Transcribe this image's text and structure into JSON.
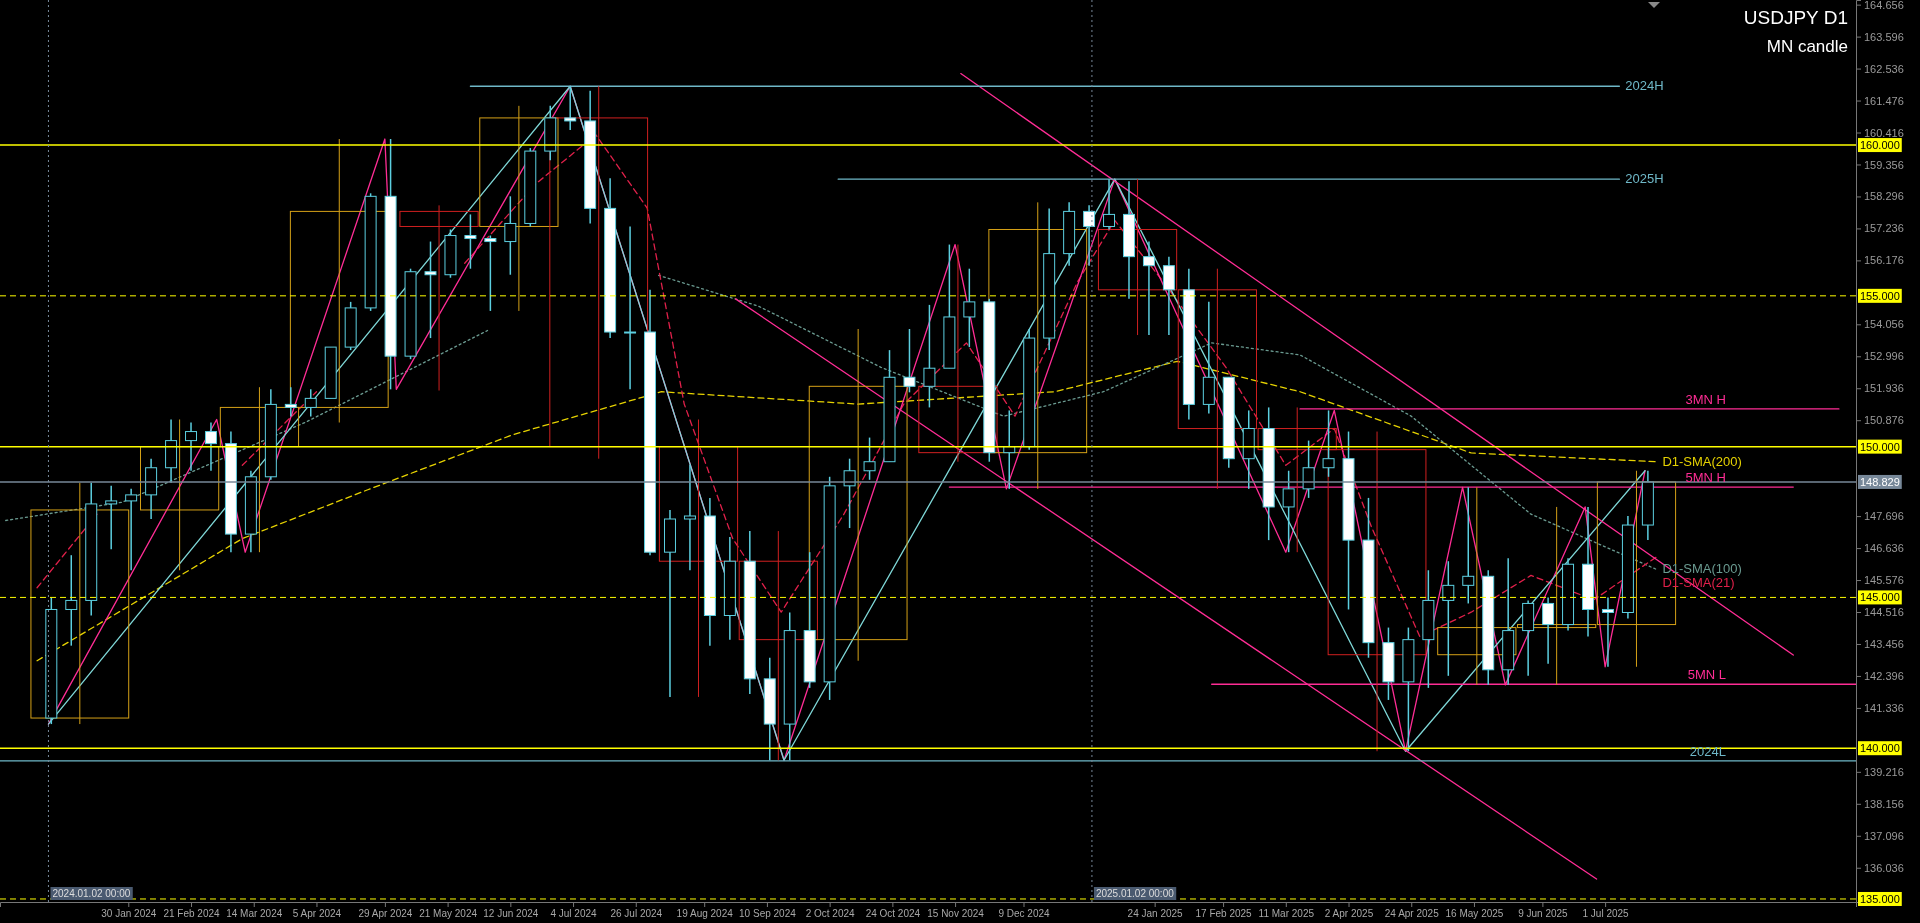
{
  "chart_data": {
    "type": "candlestick",
    "title": "USDJPY D1",
    "subtitle": "MN candle",
    "xlim": [
      "2023-12-16",
      "2025-09-27"
    ],
    "xticks": [
      {
        "value": "2024-01-30",
        "label": "30 Jan 2024"
      },
      {
        "value": "2024-02-21",
        "label": "21 Feb 2024"
      },
      {
        "value": "2024-03-14",
        "label": "14 Mar 2024"
      },
      {
        "value": "2024-04-05",
        "label": "5 Apr 2024"
      },
      {
        "value": "2024-04-29",
        "label": "29 Apr 2024"
      },
      {
        "value": "2024-05-21",
        "label": "21 May 2024"
      },
      {
        "value": "2024-06-12",
        "label": "12 Jun 2024"
      },
      {
        "value": "2024-07-04",
        "label": "4 Jul 2024"
      },
      {
        "value": "2024-07-26",
        "label": "26 Jul 2024"
      },
      {
        "value": "2024-08-19",
        "label": "19 Aug 2024"
      },
      {
        "value": "2024-09-10",
        "label": "10 Sep 2024"
      },
      {
        "value": "2024-10-02",
        "label": "2 Oct 2024"
      },
      {
        "value": "2024-10-24",
        "label": "24 Oct 2024"
      },
      {
        "value": "2024-11-15",
        "label": "15 Nov 2024"
      },
      {
        "value": "2024-12-09",
        "label": "9 Dec 2024"
      },
      {
        "value": "2025-01-24",
        "label": "24 Jan 2025"
      },
      {
        "value": "2025-02-17",
        "label": "17 Feb 2025"
      },
      {
        "value": "2025-03-11",
        "label": "11 Mar 2025"
      },
      {
        "value": "2025-04-02",
        "label": "2 Apr 2025"
      },
      {
        "value": "2025-04-24",
        "label": "24 Apr 2025"
      },
      {
        "value": "2025-05-16",
        "label": "16 May 2025"
      },
      {
        "value": "2025-06-09",
        "label": "9 Jun 2025"
      },
      {
        "value": "2025-07-01",
        "label": "1 Jul 2025"
      }
    ],
    "ylim": [
      134.9,
      164.81
    ],
    "yticks": [
      164.656,
      163.596,
      162.536,
      161.476,
      160.416,
      159.356,
      158.296,
      157.236,
      156.176,
      154.056,
      152.996,
      151.936,
      150.876,
      147.696,
      146.636,
      145.576,
      144.516,
      143.456,
      142.396,
      141.336,
      139.216,
      138.156,
      137.096,
      136.036
    ],
    "ref_lines": [
      {
        "axis": "y",
        "value": 160,
        "label": "160.000",
        "color": "#ffff00",
        "line_style": "solid"
      },
      {
        "axis": "y",
        "value": 155,
        "label": "155.000",
        "color": "#ffff00",
        "line_style": "dashed"
      },
      {
        "axis": "y",
        "value": 150,
        "label": "150.000",
        "color": "#ffff00",
        "line_style": "solid"
      },
      {
        "axis": "y",
        "value": 145,
        "label": "145.000",
        "color": "#ffff00",
        "line_style": "dashed"
      },
      {
        "axis": "y",
        "value": 140,
        "label": "140.000",
        "color": "#ffff00",
        "line_style": "solid"
      },
      {
        "axis": "y",
        "value": 135,
        "label": "135.000",
        "color": "#ffff00",
        "line_style": "dashed"
      },
      {
        "axis": "y",
        "value": 148.829,
        "label": "148.829",
        "color": "#778899",
        "line_style": "solid"
      },
      {
        "axis": "x",
        "value": "2024-01-02",
        "label": "2024.01.02 00:00",
        "color": "#778899",
        "line_style": "dotted"
      },
      {
        "axis": "x",
        "value": "2025-01-02",
        "label": "2025.01.02 00:00",
        "color": "#778899",
        "line_style": "dotted"
      }
    ],
    "series": [
      {
        "colors": [
          "#d4a017",
          "#d4a017",
          "#d4a017",
          "#d4a017",
          "#d02020",
          "#d4a017",
          "#d02020",
          "#d02020",
          "#d02020",
          "#d4a017",
          "#d02020",
          "#d4a017",
          "#d02020",
          "#d02020",
          "#d02020",
          "#d02020",
          "#d4a017",
          "#d4a017",
          "#d4a017"
        ],
        "x": [
          "2024-01-13",
          "2024-02-17",
          "2024-03-16",
          "2024-04-13",
          "2024-05-18",
          "2024-06-15",
          "2024-07-13",
          "2024-08-17",
          "2024-09-14",
          "2024-10-12",
          "2024-11-16",
          "2024-12-14",
          "2025-01-18",
          "2025-02-15",
          "2025-03-15",
          "2025-04-12",
          "2025-05-17",
          "2025-06-14",
          "2025-07-12"
        ],
        "ohlc": [
          [
            141.0,
            148.8,
            140.8,
            147.9
          ],
          [
            147.9,
            150.9,
            145.9,
            150.0
          ],
          [
            150.0,
            151.97,
            146.5,
            151.3
          ],
          [
            151.3,
            160.2,
            150.8,
            157.8
          ],
          [
            157.8,
            158.0,
            151.86,
            157.3
          ],
          [
            157.3,
            161.3,
            154.5,
            160.9
          ],
          [
            160.9,
            161.95,
            149.6,
            150.0
          ],
          [
            150.0,
            150.9,
            141.7,
            146.2
          ],
          [
            146.2,
            147.2,
            139.6,
            143.6
          ],
          [
            143.6,
            153.9,
            142.9,
            152.0
          ],
          [
            152.0,
            156.7,
            149.5,
            149.8
          ],
          [
            149.8,
            158.1,
            148.6,
            157.2
          ],
          [
            157.2,
            158.87,
            153.7,
            155.2
          ],
          [
            155.2,
            155.9,
            148.6,
            150.6
          ],
          [
            150.6,
            151.3,
            146.5,
            149.9
          ],
          [
            149.9,
            150.5,
            139.9,
            143.1
          ],
          [
            143.1,
            148.65,
            142.1,
            144.0
          ],
          [
            144.0,
            148.0,
            142.1,
            144.1
          ],
          [
            144.1,
            149.2,
            142.7,
            148.829
          ]
        ]
      },
      {
        "type": "line",
        "name": "D1-SMA(200)",
        "color": "#e6d200",
        "line_style": "dashed",
        "x": [
          "2023-12-29",
          "2024-03-10",
          "2024-04-23",
          "2024-06-13",
          "2024-08-04",
          "2024-10-12",
          "2024-12-20",
          "2025-02-01",
          "2025-03-16",
          "2025-05-15",
          "2025-07-19"
        ],
        "values": [
          142.9,
          146.95,
          148.57,
          150.4,
          151.82,
          151.41,
          151.82,
          152.83,
          151.82,
          149.79,
          149.5
        ]
      },
      {
        "type": "line",
        "name": "D1-SMA(100)",
        "color": "#6a9a90",
        "line_style": "dotted",
        "x": [
          "2023-12-18",
          "2024-01-28",
          "2024-04-01",
          "2024-06-04",
          "2024-07-17",
          "2024-08-03",
          "2024-09-07",
          "2024-10-20",
          "2024-12-02",
          "2025-01-06",
          "2025-02-13",
          "2025-03-16",
          "2025-04-24",
          "2025-06-05",
          "2025-07-19"
        ],
        "values": [
          147.55,
          148.16,
          150.8,
          153.85,
          null,
          155.68,
          154.66,
          152.63,
          151.01,
          151.82,
          153.44,
          153.04,
          151.01,
          147.76,
          145.93
        ]
      },
      {
        "type": "line",
        "name": "D1-SMA(21)",
        "color": "#e0204a",
        "line_style": "dashed",
        "x": [
          "2023-12-29",
          "2024-01-19",
          "2024-02-14",
          "2024-03-10",
          "2024-04-05",
          "2024-05-01",
          "2024-05-27",
          "2024-06-21",
          "2024-07-12",
          "2024-07-30",
          "2024-08-12",
          "2024-08-29",
          "2024-09-15",
          "2024-10-07",
          "2024-10-28",
          "2024-11-19",
          "2024-12-06",
          "2024-12-28",
          "2025-01-10",
          "2025-01-27",
          "2025-02-18",
          "2025-03-11",
          "2025-03-28",
          "2025-04-10",
          "2025-04-27",
          "2025-05-15",
          "2025-06-05",
          "2025-06-27",
          "2025-07-19"
        ],
        "values": [
          145.32,
          147.76,
          null,
          149.38,
          151.82,
          null,
          156.08,
          158.72,
          160.34,
          157.91,
          151.41,
          146.95,
          144.51,
          147.76,
          151.41,
          153.44,
          151.01,
          155.47,
          157.5,
          155.47,
          152.63,
          149.38,
          150.6,
          147.35,
          143.7,
          144.51,
          145.73,
          144.92,
          146.34
        ]
      },
      {
        "type": "line",
        "color": "#ff2d95",
        "line_style": "solid",
        "x": [
          "2024-01-02",
          "2024-03-01",
          "2024-03-11",
          "2024-04-29",
          "2024-05-03",
          "2024-07-03",
          "2024-09-16",
          "2024-11-15",
          "2024-12-03",
          "2025-01-10",
          "2025-03-11",
          "2025-03-28",
          "2025-04-22",
          "2025-05-12",
          "2025-05-27",
          "2025-06-24",
          "2025-07-01",
          "2025-07-15"
        ],
        "values": [
          140.8,
          150.9,
          146.5,
          160.2,
          151.9,
          161.95,
          139.6,
          156.7,
          148.6,
          158.87,
          146.5,
          151.2,
          139.9,
          148.65,
          142.1,
          148.0,
          142.7,
          149.2
        ]
      },
      {
        "type": "line",
        "color": "#7fd8d8",
        "line_style": "solid",
        "x": [
          "2024-01-02",
          "2024-07-03",
          "2024-09-16",
          "2025-01-10",
          "2025-04-22",
          "2025-07-15"
        ],
        "values": [
          140.8,
          161.95,
          139.6,
          158.87,
          139.9,
          149.2
        ]
      },
      {
        "type": "line",
        "color": "#ff2d95",
        "line_style": "solid",
        "x": [
          "2024-11-17",
          "2025-09-05"
        ],
        "values": [
          162.37,
          143.09
        ]
      },
      {
        "type": "line",
        "color": "#ff2d95",
        "line_style": "solid",
        "x": [
          "2024-08-30",
          "2025-06-28"
        ],
        "values": [
          154.9,
          135.66
        ]
      },
      {
        "type": "line",
        "name": "2024H",
        "color": "#6fb8c8",
        "line_style": "solid",
        "x": [
          "2024-05-29",
          "2025-07-06"
        ],
        "values": [
          161.95,
          161.95
        ]
      },
      {
        "type": "line",
        "name": "2025H",
        "color": "#6fb8c8",
        "line_style": "solid",
        "x": [
          "2024-10-05",
          "2025-07-06"
        ],
        "values": [
          158.87,
          158.87
        ]
      },
      {
        "type": "line",
        "name": "2024L",
        "color": "#6fb8c8",
        "line_style": "solid",
        "x": [
          "2023-12-16",
          "2025-09-27"
        ],
        "values": [
          139.58,
          139.58
        ]
      },
      {
        "type": "line",
        "name": "3MN H",
        "color": "#ff2d95",
        "line_style": "solid",
        "x": [
          "2025-03-16",
          "2025-09-21"
        ],
        "values": [
          151.25,
          151.25
        ]
      },
      {
        "type": "line",
        "name": "5MN H",
        "color": "#ff2d95",
        "line_style": "solid",
        "x": [
          "2024-11-13",
          "2025-09-05"
        ],
        "values": [
          148.66,
          148.66
        ]
      },
      {
        "type": "line",
        "name": "5MN L",
        "color": "#ff2d95",
        "line_style": "solid",
        "x": [
          "2025-02-13",
          "2025-09-27"
        ],
        "values": [
          142.12,
          142.12
        ]
      },
      {
        "color": "#5ccfe0",
        "x": [
          "2024-01-03",
          "2024-01-10",
          "2024-01-17",
          "2024-01-24",
          "2024-01-31",
          "2024-02-07",
          "2024-02-14",
          "2024-02-21",
          "2024-02-28",
          "2024-03-06",
          "2024-03-13",
          "2024-03-20",
          "2024-03-27",
          "2024-04-03",
          "2024-04-10",
          "2024-04-17",
          "2024-04-24",
          "2024-05-01",
          "2024-05-08",
          "2024-05-15",
          "2024-05-22",
          "2024-05-29",
          "2024-06-05",
          "2024-06-12",
          "2024-06-19",
          "2024-06-26",
          "2024-07-03",
          "2024-07-10",
          "2024-07-17",
          "2024-07-24",
          "2024-07-31",
          "2024-08-07",
          "2024-08-14",
          "2024-08-21",
          "2024-08-28",
          "2024-09-04",
          "2024-09-11",
          "2024-09-18",
          "2024-09-25",
          "2024-10-02",
          "2024-10-09",
          "2024-10-16",
          "2024-10-23",
          "2024-10-30",
          "2024-11-06",
          "2024-11-13",
          "2024-11-20",
          "2024-11-27",
          "2024-12-04",
          "2024-12-11",
          "2024-12-18",
          "2024-12-25",
          "2025-01-01",
          "2025-01-08",
          "2025-01-15",
          "2025-01-22",
          "2025-01-29",
          "2025-02-05",
          "2025-02-12",
          "2025-02-19",
          "2025-02-26",
          "2025-03-05",
          "2025-03-12",
          "2025-03-19",
          "2025-03-26",
          "2025-04-02",
          "2025-04-09",
          "2025-04-16",
          "2025-04-23",
          "2025-04-30",
          "2025-05-07",
          "2025-05-14",
          "2025-05-21",
          "2025-05-28",
          "2025-06-04",
          "2025-06-11",
          "2025-06-18",
          "2025-06-25",
          "2025-07-02",
          "2025-07-09",
          "2025-07-16"
        ],
        "ohlc": [
          [
            141.0,
            145.0,
            140.8,
            144.6
          ],
          [
            144.6,
            146.4,
            143.4,
            144.9
          ],
          [
            144.9,
            148.8,
            144.4,
            148.1
          ],
          [
            148.1,
            148.7,
            146.6,
            148.2
          ],
          [
            148.2,
            148.6,
            145.9,
            148.4
          ],
          [
            148.4,
            149.6,
            147.6,
            149.3
          ],
          [
            149.3,
            150.9,
            148.8,
            150.2
          ],
          [
            150.2,
            150.8,
            149.2,
            150.5
          ],
          [
            150.5,
            150.8,
            149.2,
            150.1
          ],
          [
            150.1,
            150.5,
            146.5,
            147.1
          ],
          [
            147.1,
            149.2,
            146.5,
            149.0
          ],
          [
            149.0,
            151.9,
            148.9,
            151.4
          ],
          [
            151.4,
            151.97,
            151.0,
            151.3
          ],
          [
            151.3,
            151.9,
            151.0,
            151.6
          ],
          [
            151.6,
            153.3,
            151.6,
            153.3
          ],
          [
            153.3,
            154.8,
            153.2,
            154.6
          ],
          [
            154.6,
            158.4,
            154.5,
            158.3
          ],
          [
            158.3,
            160.2,
            151.9,
            153.0
          ],
          [
            153.0,
            155.9,
            152.9,
            155.8
          ],
          [
            155.8,
            156.8,
            153.6,
            155.7
          ],
          [
            155.7,
            157.2,
            155.6,
            157.0
          ],
          [
            157.0,
            157.7,
            155.9,
            156.9
          ],
          [
            156.9,
            157.0,
            154.5,
            156.8
          ],
          [
            156.8,
            158.3,
            155.7,
            157.4
          ],
          [
            157.4,
            159.9,
            157.3,
            159.8
          ],
          [
            159.8,
            161.3,
            159.5,
            160.9
          ],
          [
            160.9,
            161.95,
            160.5,
            160.8
          ],
          [
            160.8,
            161.8,
            157.4,
            157.9
          ],
          [
            157.9,
            158.9,
            153.6,
            153.8
          ],
          [
            153.8,
            157.3,
            151.9,
            153.8
          ],
          [
            153.8,
            155.2,
            146.4,
            146.5
          ],
          [
            146.5,
            147.9,
            141.7,
            147.6
          ],
          [
            147.6,
            149.4,
            145.9,
            147.7
          ],
          [
            147.7,
            148.3,
            143.4,
            144.4
          ],
          [
            144.4,
            147.0,
            143.6,
            146.2
          ],
          [
            146.2,
            147.2,
            141.8,
            142.3
          ],
          [
            142.3,
            143.0,
            139.6,
            140.8
          ],
          [
            140.8,
            144.5,
            139.6,
            143.9
          ],
          [
            143.9,
            146.5,
            142.0,
            142.2
          ],
          [
            142.2,
            149.0,
            141.6,
            148.7
          ],
          [
            148.7,
            149.6,
            147.3,
            149.2
          ],
          [
            149.2,
            150.3,
            148.9,
            149.5
          ],
          [
            149.5,
            153.2,
            149.5,
            152.3
          ],
          [
            152.3,
            153.9,
            151.8,
            152.0
          ],
          [
            152.0,
            154.7,
            151.3,
            152.6
          ],
          [
            152.6,
            156.7,
            152.6,
            154.3
          ],
          [
            154.3,
            155.9,
            153.3,
            154.8
          ],
          [
            154.8,
            154.9,
            149.5,
            149.8
          ],
          [
            149.8,
            151.2,
            148.6,
            150.0
          ],
          [
            150.0,
            153.9,
            149.9,
            153.6
          ],
          [
            153.6,
            157.9,
            153.2,
            156.4
          ],
          [
            156.4,
            158.1,
            156.0,
            157.8
          ],
          [
            157.8,
            158.0,
            156.0,
            157.3
          ],
          [
            157.3,
            158.87,
            157.2,
            157.7
          ],
          [
            157.7,
            158.8,
            154.9,
            156.3
          ],
          [
            156.3,
            156.8,
            153.7,
            156.0
          ],
          [
            156.0,
            156.3,
            153.7,
            155.2
          ],
          [
            155.2,
            155.9,
            150.9,
            151.4
          ],
          [
            151.4,
            154.8,
            151.1,
            152.3
          ],
          [
            152.3,
            152.3,
            149.3,
            149.6
          ],
          [
            149.6,
            151.2,
            148.6,
            150.6
          ],
          [
            150.6,
            151.3,
            146.9,
            148.0
          ],
          [
            148.0,
            149.2,
            146.5,
            148.6
          ],
          [
            148.6,
            150.2,
            148.3,
            149.3
          ],
          [
            149.3,
            151.2,
            149.0,
            149.6
          ],
          [
            149.6,
            150.5,
            144.6,
            146.9
          ],
          [
            146.9,
            148.3,
            143.0,
            143.5
          ],
          [
            143.5,
            144.0,
            141.6,
            142.2
          ],
          [
            142.2,
            144.0,
            139.9,
            143.6
          ],
          [
            143.6,
            145.9,
            142.0,
            144.9
          ],
          [
            144.9,
            146.2,
            142.4,
            145.4
          ],
          [
            145.4,
            148.65,
            144.8,
            145.7
          ],
          [
            145.7,
            145.9,
            142.1,
            142.6
          ],
          [
            142.6,
            146.3,
            142.1,
            143.9
          ],
          [
            143.9,
            144.9,
            142.4,
            144.8
          ],
          [
            144.8,
            145.0,
            142.8,
            144.1
          ],
          [
            144.1,
            146.3,
            143.9,
            146.1
          ],
          [
            146.1,
            148.0,
            143.7,
            144.6
          ],
          [
            144.6,
            145.0,
            142.7,
            144.5
          ],
          [
            144.5,
            147.7,
            144.3,
            147.4
          ],
          [
            147.4,
            149.2,
            146.9,
            148.829
          ]
        ]
      }
    ]
  }
}
